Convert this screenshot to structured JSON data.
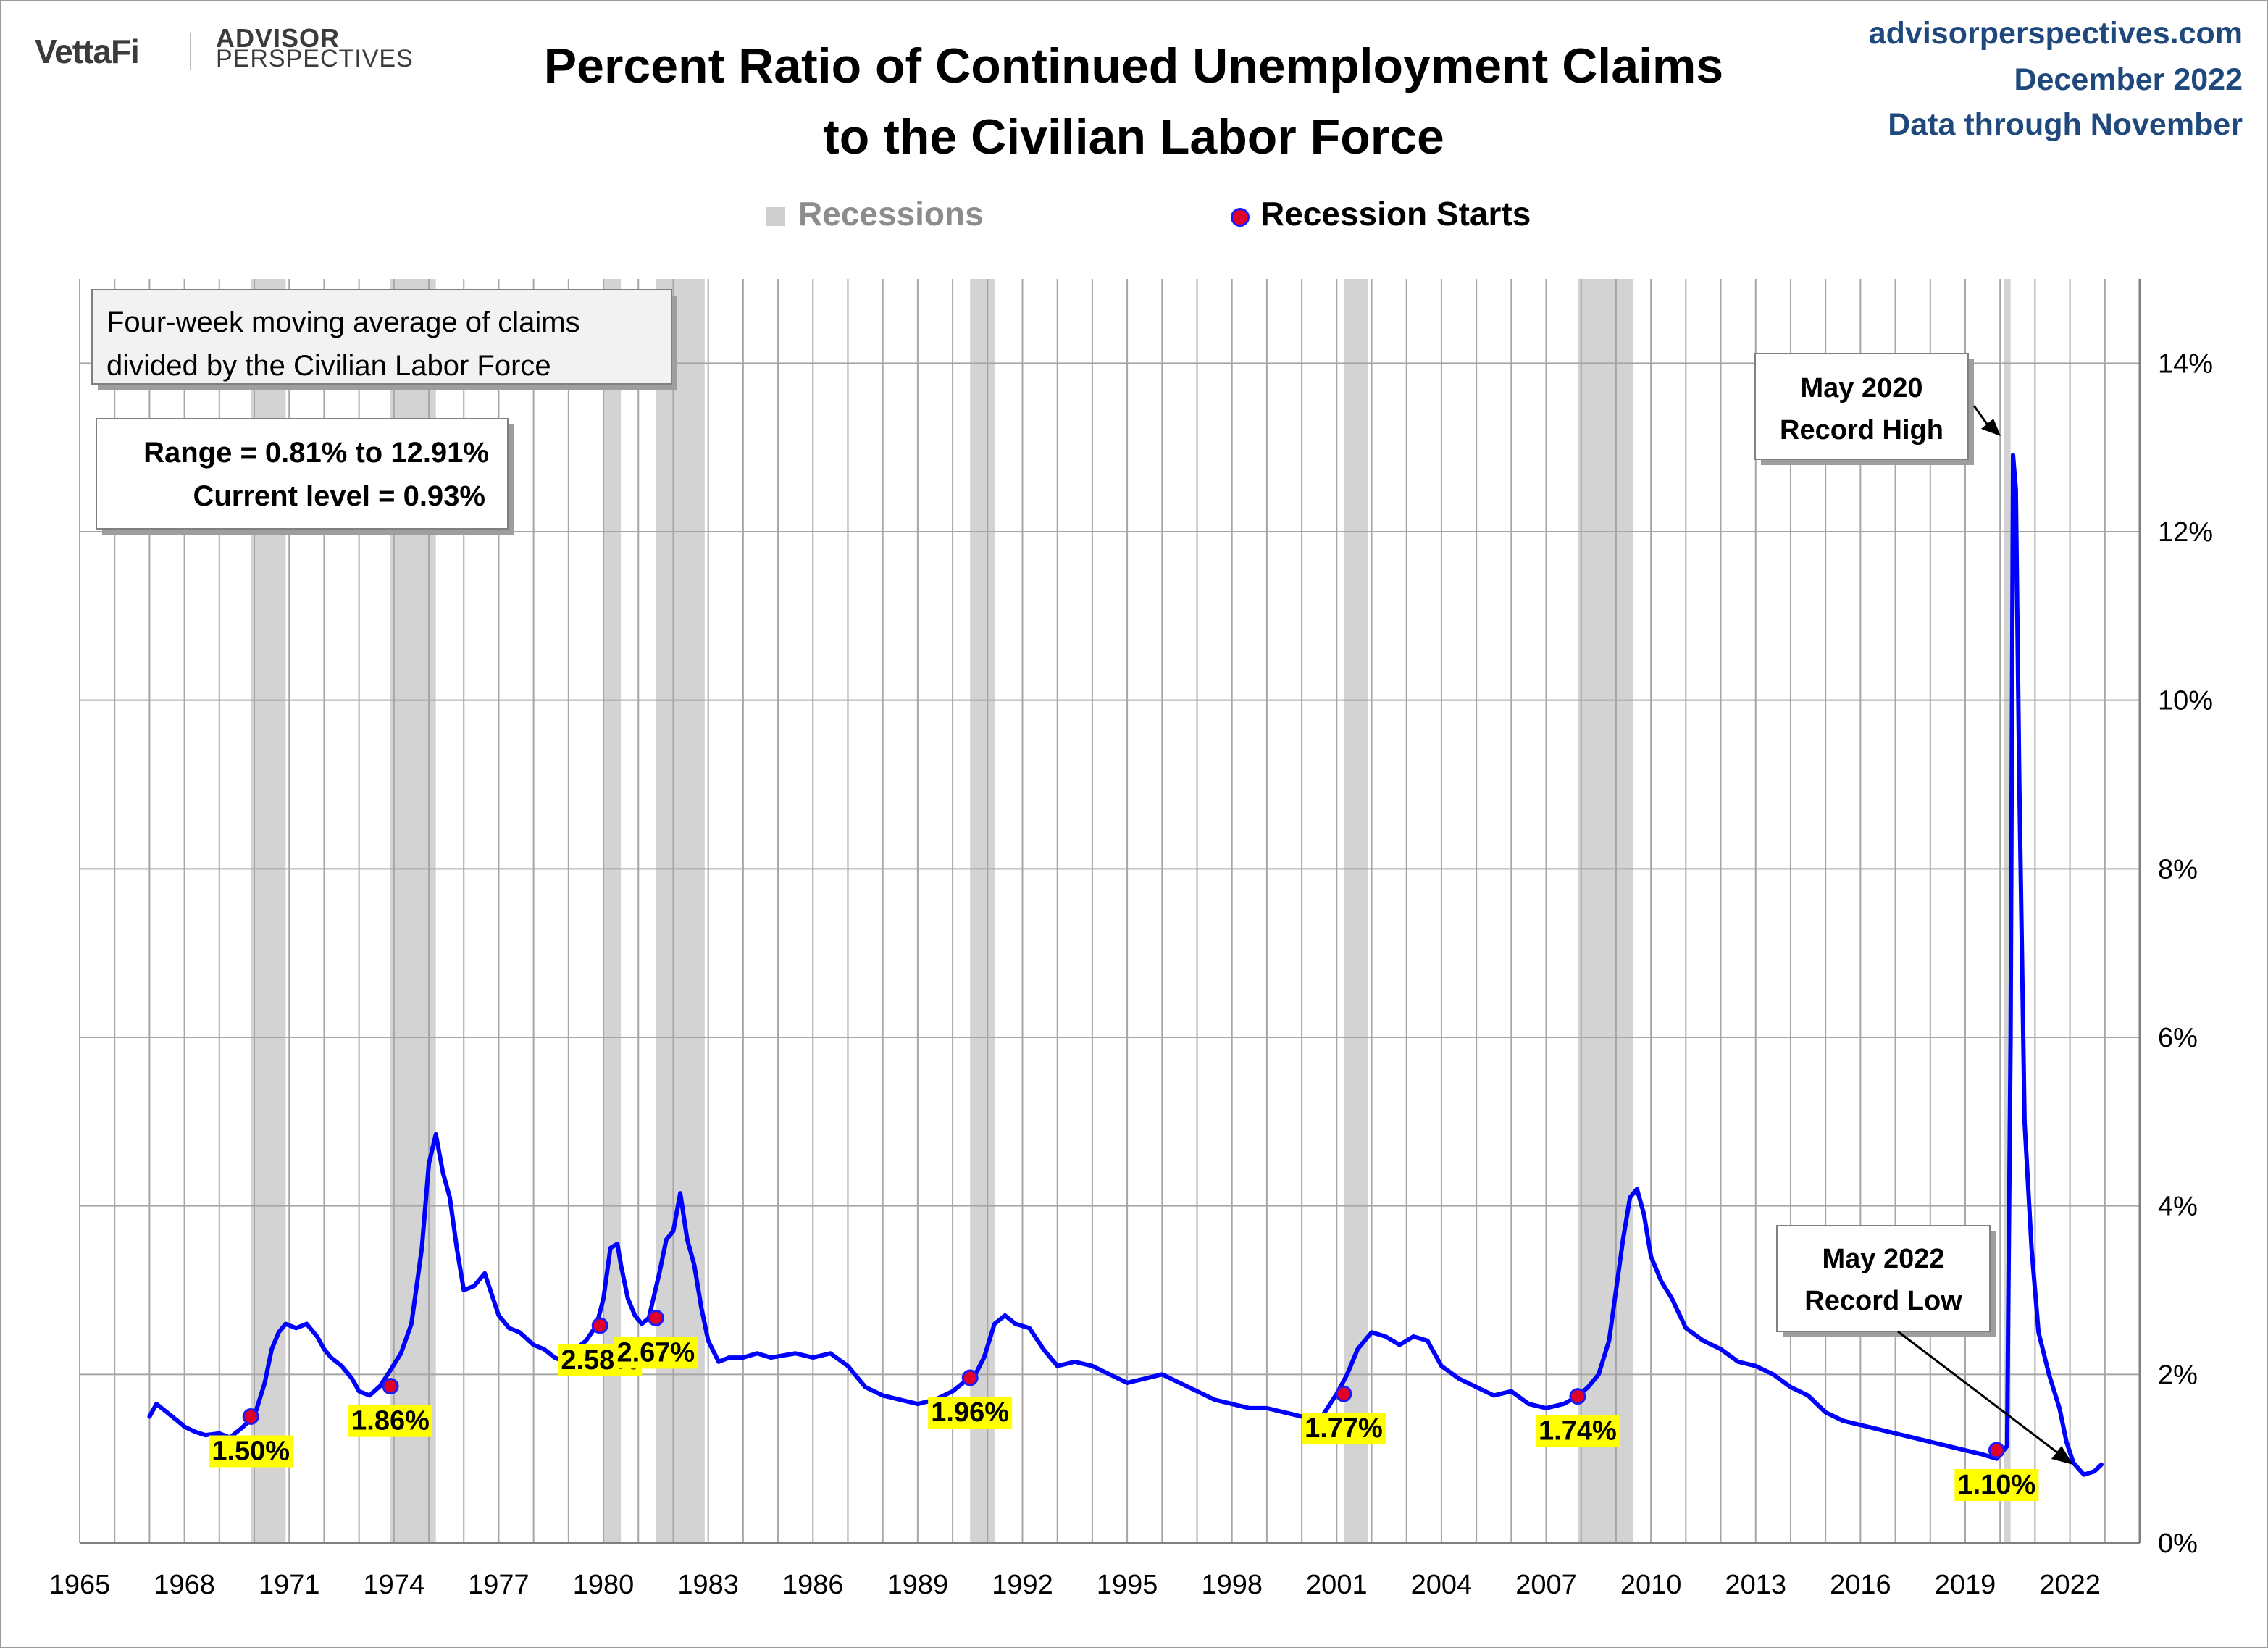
{
  "header": {
    "brand_vettafi": "VettaFi",
    "brand_advisor": "ADVISOR",
    "brand_perspectives": "PERSPECTIVES",
    "title_line1": "Percent Ratio of Continued Unemployment Claims",
    "title_line2": "to the Civilian Labor Force",
    "source_site": "advisorperspectives.com",
    "source_date": "December 2022",
    "source_note": "Data through November"
  },
  "legend": {
    "recessions": "Recessions",
    "recession_starts": "Recession Starts"
  },
  "colors": {
    "line": "#0000ff",
    "recession_band": "#d3d3d3",
    "start_marker": "#e0002a",
    "label_highlight": "#ffff00",
    "source_text": "#1f497d"
  },
  "chart_data": {
    "type": "line",
    "title": "Percent Ratio of Continued Unemployment Claims to the Civilian Labor Force",
    "xlim": [
      1965,
      2024
    ],
    "ylim": [
      0,
      15
    ],
    "x_ticks": [
      "1965",
      "1968",
      "1971",
      "1974",
      "1977",
      "1980",
      "1983",
      "1986",
      "1989",
      "1992",
      "1995",
      "1998",
      "2001",
      "2004",
      "2007",
      "2010",
      "2013",
      "2016",
      "2019",
      "2022"
    ],
    "y_ticks": [
      "0%",
      "2%",
      "4%",
      "6%",
      "8%",
      "10%",
      "12%",
      "14%"
    ],
    "y_axis_side": "right",
    "grid": true,
    "legend_position": "top-center",
    "series": [
      {
        "x": [
          1967.0,
          1967.2,
          1967.5,
          1967.8,
          1968.0,
          1968.3,
          1968.6,
          1969.0,
          1969.3,
          1969.6,
          1970.0,
          1970.3,
          1970.5,
          1970.7,
          1970.9,
          1971.2,
          1971.5,
          1971.8,
          1972.0,
          1972.2,
          1972.5,
          1972.8,
          1973.0,
          1973.3,
          1973.6,
          1973.9,
          1974.2,
          1974.5,
          1974.8,
          1975.0,
          1975.2,
          1975.4,
          1975.6,
          1975.8,
          1976.0,
          1976.3,
          1976.6,
          1977.0,
          1977.3,
          1977.6,
          1978.0,
          1978.3,
          1978.6,
          1978.9,
          1979.2,
          1979.5,
          1979.8,
          1980.0,
          1980.2,
          1980.4,
          1980.5,
          1980.7,
          1980.9,
          1981.1,
          1981.3,
          1981.6,
          1981.8,
          1982.0,
          1982.2,
          1982.4,
          1982.6,
          1982.8,
          1983.0,
          1983.3,
          1983.6,
          1984.0,
          1984.4,
          1984.8,
          1985.5,
          1986.0,
          1986.5,
          1987.0,
          1987.5,
          1988.0,
          1988.5,
          1989.0,
          1989.5,
          1990.0,
          1990.3,
          1990.6,
          1990.9,
          1991.2,
          1991.5,
          1991.8,
          1992.2,
          1992.6,
          1993.0,
          1993.5,
          1994.0,
          1994.5,
          1995.0,
          1995.5,
          1996.0,
          1996.5,
          1997.0,
          1997.5,
          1998.0,
          1998.5,
          1999.0,
          1999.5,
          2000.0,
          2000.5,
          2001.0,
          2001.3,
          2001.6,
          2002.0,
          2002.4,
          2002.8,
          2003.2,
          2003.6,
          2004.0,
          2004.5,
          2005.0,
          2005.5,
          2006.0,
          2006.5,
          2007.0,
          2007.5,
          2007.9,
          2008.2,
          2008.5,
          2008.8,
          2009.0,
          2009.2,
          2009.4,
          2009.6,
          2009.8,
          2010.0,
          2010.3,
          2010.6,
          2011.0,
          2011.5,
          2012.0,
          2012.5,
          2013.0,
          2013.5,
          2014.0,
          2014.5,
          2015.0,
          2015.5,
          2016.0,
          2016.5,
          2017.0,
          2017.5,
          2018.0,
          2018.5,
          2019.0,
          2019.5,
          2019.9,
          2020.1,
          2020.2,
          2020.3,
          2020.37,
          2020.45,
          2020.55,
          2020.7,
          2020.9,
          2021.1,
          2021.4,
          2021.7,
          2021.9,
          2022.1,
          2022.4,
          2022.7,
          2022.9
        ],
        "values": [
          1.5,
          1.65,
          1.55,
          1.45,
          1.38,
          1.32,
          1.28,
          1.3,
          1.25,
          1.35,
          1.5,
          1.9,
          2.3,
          2.5,
          2.6,
          2.55,
          2.6,
          2.45,
          2.3,
          2.2,
          2.1,
          1.95,
          1.8,
          1.75,
          1.86,
          2.05,
          2.25,
          2.6,
          3.5,
          4.5,
          4.85,
          4.4,
          4.1,
          3.5,
          3.0,
          3.05,
          3.2,
          2.7,
          2.55,
          2.5,
          2.35,
          2.3,
          2.2,
          2.15,
          2.3,
          2.4,
          2.58,
          2.9,
          3.5,
          3.55,
          3.3,
          2.9,
          2.7,
          2.6,
          2.67,
          3.2,
          3.6,
          3.7,
          4.15,
          3.6,
          3.3,
          2.8,
          2.4,
          2.15,
          2.2,
          2.2,
          2.25,
          2.2,
          2.25,
          2.2,
          2.25,
          2.1,
          1.85,
          1.75,
          1.7,
          1.65,
          1.7,
          1.8,
          1.9,
          1.96,
          2.2,
          2.6,
          2.7,
          2.6,
          2.55,
          2.3,
          2.1,
          2.15,
          2.1,
          2.0,
          1.9,
          1.95,
          2.0,
          1.9,
          1.8,
          1.7,
          1.65,
          1.6,
          1.6,
          1.55,
          1.5,
          1.45,
          1.77,
          2.0,
          2.3,
          2.5,
          2.45,
          2.35,
          2.45,
          2.4,
          2.1,
          1.95,
          1.85,
          1.75,
          1.8,
          1.65,
          1.6,
          1.65,
          1.74,
          1.85,
          2.0,
          2.4,
          3.0,
          3.6,
          4.1,
          4.2,
          3.9,
          3.4,
          3.1,
          2.9,
          2.55,
          2.4,
          2.3,
          2.15,
          2.1,
          2.0,
          1.85,
          1.75,
          1.55,
          1.45,
          1.4,
          1.35,
          1.3,
          1.25,
          1.2,
          1.15,
          1.1,
          1.05,
          1.0,
          1.1,
          1.15,
          6.0,
          12.91,
          12.5,
          9.0,
          5.0,
          3.5,
          2.5,
          2.0,
          1.6,
          1.2,
          0.95,
          0.81,
          0.85,
          0.93
        ]
      }
    ],
    "recessions": [
      [
        1969.9,
        1970.9
      ],
      [
        1973.9,
        1975.2
      ],
      [
        1980.0,
        1980.5
      ],
      [
        1981.5,
        1982.9
      ],
      [
        1990.5,
        1991.2
      ],
      [
        2001.2,
        2001.9
      ],
      [
        2007.9,
        2009.5
      ],
      [
        2020.1,
        2020.3
      ]
    ],
    "recession_starts": [
      {
        "x": 1969.9,
        "value": 1.5,
        "label": "1.50%"
      },
      {
        "x": 1973.9,
        "value": 1.86,
        "label": "1.86%"
      },
      {
        "x": 1979.9,
        "value": 2.58,
        "label": "2.58%"
      },
      {
        "x": 1981.5,
        "value": 2.67,
        "label": "2.67%"
      },
      {
        "x": 1990.5,
        "value": 1.96,
        "label": "1.96%"
      },
      {
        "x": 2001.2,
        "value": 1.77,
        "label": "1.77%"
      },
      {
        "x": 2007.9,
        "value": 1.74,
        "label": "1.74%"
      },
      {
        "x": 2019.9,
        "value": 1.1,
        "label": "1.10%"
      }
    ],
    "annotations": {
      "note_line1": "Four-week moving average of claims",
      "note_line2": "divided by the Civilian Labor Force",
      "range_text": "Range = 0.81% to 12.91%",
      "current_text": "Current level = 0.93%",
      "high_line1": "May 2020",
      "high_line2": "Record High",
      "high_x": 2020.37,
      "high_value": 12.91,
      "low_line1": "May 2022",
      "low_line2": "Record Low",
      "low_x": 2022.4,
      "low_value": 0.81
    }
  }
}
